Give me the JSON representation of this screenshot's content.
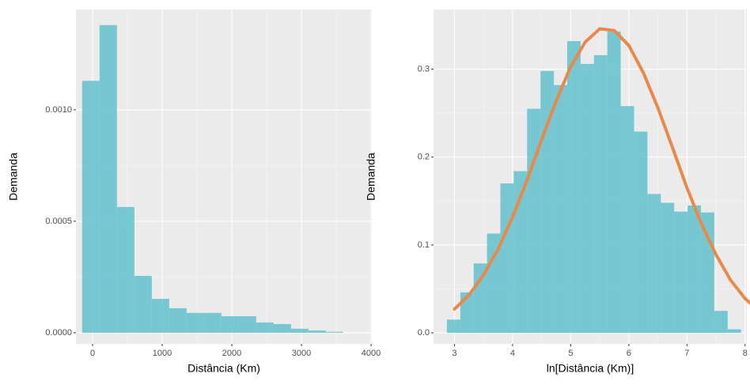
{
  "chart_data": [
    {
      "type": "histogram",
      "color": "#62c1cd",
      "grid": true,
      "x_label": "Distância (Km)",
      "y_label": "Demanda",
      "bins": [
        -150,
        100,
        350,
        600,
        850,
        1100,
        1350,
        1600,
        1850,
        2100,
        2350,
        2600,
        2850,
        3100,
        3350,
        3600
      ],
      "values": [
        0.00113,
        0.00138,
        0.000564,
        0.000255,
        0.000152,
        0.00011,
        8.9e-05,
        8.9e-05,
        7.4e-05,
        7.4e-05,
        4.6e-05,
        3.9e-05,
        1.8e-05,
        1e-05,
        4e-06
      ],
      "xlim": [
        -239,
        4011
      ],
      "ylim": [
        -5e-05,
        0.00145
      ],
      "xticks": [
        0,
        1000,
        2000,
        3000,
        4000
      ],
      "yticks": [
        {
          "value": 0,
          "label": "0.0000"
        },
        {
          "value": 0.0005,
          "label": "0.0005"
        },
        {
          "value": 0.001,
          "label": "0.0010"
        }
      ]
    },
    {
      "type": "histogram",
      "color": "#62c1cd",
      "grid": true,
      "x_label": "ln[Distância (Km)]",
      "y_label": "Demanda",
      "bins": [
        2.87,
        3.1,
        3.33,
        3.56,
        3.79,
        4.02,
        4.25,
        4.48,
        4.71,
        4.94,
        5.17,
        5.4,
        5.63,
        5.86,
        6.09,
        6.32,
        6.55,
        6.78,
        7.01,
        7.24,
        7.47,
        7.7,
        7.93
      ],
      "values": [
        0.015,
        0.046,
        0.079,
        0.113,
        0.17,
        0.184,
        0.255,
        0.298,
        0.282,
        0.332,
        0.306,
        0.316,
        0.343,
        0.258,
        0.229,
        0.158,
        0.148,
        0.138,
        0.145,
        0.137,
        0.025,
        0.004
      ],
      "line": {
        "color": "#e8894a",
        "x": [
          3.0,
          3.25,
          3.5,
          3.75,
          4.0,
          4.25,
          4.5,
          4.75,
          5.0,
          5.25,
          5.5,
          5.75,
          6.0,
          6.25,
          6.5,
          6.75,
          7.0,
          7.25,
          7.5,
          7.75,
          8.0,
          8.2
        ],
        "values": [
          0.027,
          0.043,
          0.066,
          0.095,
          0.132,
          0.174,
          0.22,
          0.264,
          0.303,
          0.331,
          0.346,
          0.344,
          0.327,
          0.296,
          0.256,
          0.211,
          0.165,
          0.124,
          0.089,
          0.06,
          0.039,
          0.027
        ]
      },
      "xlim": [
        2.64,
        8.03
      ],
      "ylim": [
        -0.0126,
        0.368
      ],
      "xticks": [
        3,
        4,
        5,
        6,
        7,
        8
      ],
      "yticks": [
        {
          "value": 0,
          "label": "0.0"
        },
        0.1,
        0.2,
        0.3
      ]
    }
  ]
}
